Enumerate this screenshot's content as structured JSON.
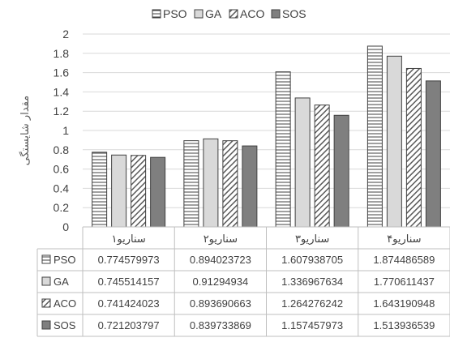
{
  "chart_data": {
    "type": "bar",
    "title": "",
    "ylabel": "مقدار شایستگی",
    "xlabel": "",
    "categories": [
      "سناریو۱",
      "سناریو۲",
      "سناریو۳",
      "سناریو۴"
    ],
    "ylim": [
      0,
      2
    ],
    "yticks": [
      "0",
      "0.2",
      "0.4",
      "0.6",
      "0.8",
      "1",
      "1.2",
      "1.4",
      "1.6",
      "1.8",
      "2"
    ],
    "grid": true,
    "legend": "top",
    "series": [
      {
        "name": "PSO",
        "values": [
          0.774579973,
          0.894023723,
          1.607938705,
          1.874486589
        ],
        "pattern": "horizontal-lines",
        "color": "#ffffff",
        "table": [
          "0.774579973",
          "0.894023723",
          "1.607938705",
          "1.874486589"
        ]
      },
      {
        "name": "GA",
        "values": [
          0.745514157,
          0.91294934,
          1.336967634,
          1.770611437
        ],
        "pattern": "solid",
        "color": "#d9d9d9",
        "table": [
          "0.745514157",
          "0.91294934",
          "1.336967634",
          "1.770611437"
        ]
      },
      {
        "name": "ACO",
        "values": [
          0.741424023,
          0.893690663,
          1.264276242,
          1.643190948
        ],
        "pattern": "diagonal-lines",
        "color": "#a6a6a6",
        "table": [
          "0.741424023",
          "0.893690663",
          "1.264276242",
          "1.643190948"
        ]
      },
      {
        "name": "SOS",
        "values": [
          0.721203797,
          0.839733869,
          1.157457973,
          1.513936539
        ],
        "pattern": "solid",
        "color": "#7f7f7f",
        "table": [
          "0.721203797",
          "0.839733869",
          "1.157457973",
          "1.513936539"
        ]
      }
    ]
  }
}
